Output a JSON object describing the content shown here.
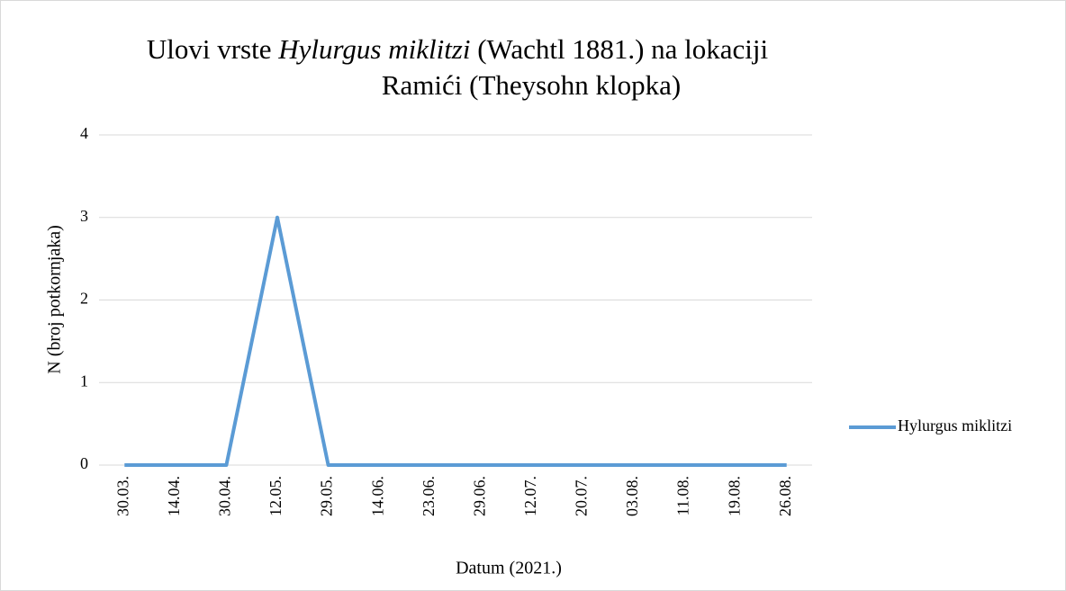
{
  "chart_data": {
    "type": "line",
    "title": [
      "Ulovi vrste ",
      "Hylurgus miklitzi",
      " (Wachtl 1881.) na lokaciji",
      "Ramići (Theysohn klopka)"
    ],
    "xlabel": "Datum (2021.)",
    "ylabel": "N (broj potkornjaka)",
    "categories": [
      "30.03.",
      "14.04.",
      "30.04.",
      "12.05.",
      "29.05.",
      "14.06.",
      "23.06.",
      "29.06.",
      "12.07.",
      "20.07.",
      "03.08.",
      "11.08.",
      "19.08.",
      "26.08."
    ],
    "series": [
      {
        "name": "Hylurgus miklitzi",
        "color": "#5b9bd5",
        "values": [
          0,
          0,
          0,
          3,
          0,
          0,
          0,
          0,
          0,
          0,
          0,
          0,
          0,
          0
        ]
      }
    ],
    "ylim": [
      0,
      4
    ],
    "yticks": [
      0,
      1,
      2,
      3,
      4
    ],
    "grid": true,
    "legend": "right"
  }
}
